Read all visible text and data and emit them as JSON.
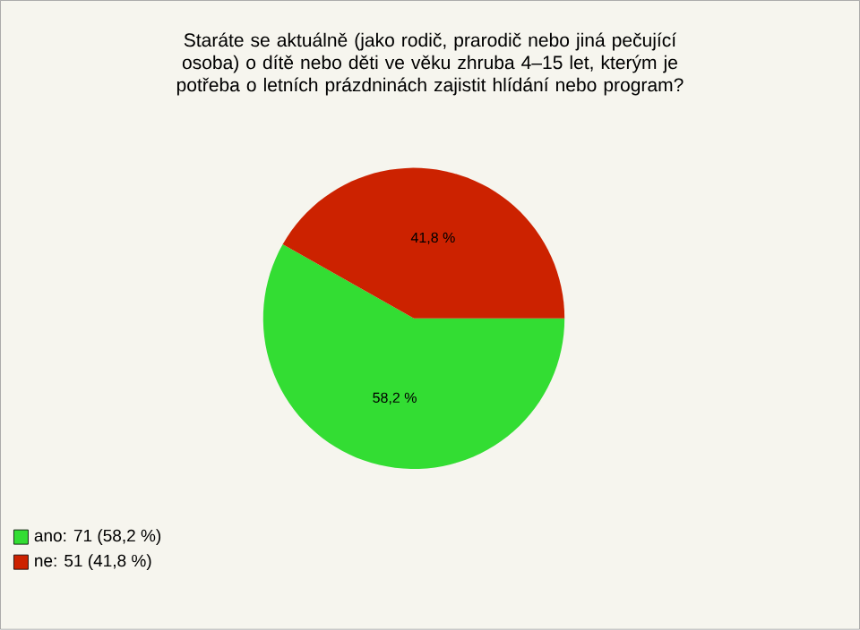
{
  "chart_data": {
    "type": "pie",
    "title": "Staráte se aktuálně (jako rodič, prarodič nebo jiná pečující osoba) o dítě nebo děti ve věku zhruba 4–15 let, kterým je potřeba o letních prázdninách zajistit hlídání nebo program?",
    "categories": [
      "ano: 71 (58,2 %)",
      "ne: 51 (41,8 %)"
    ],
    "values": [
      58.2,
      41.8
    ],
    "value_labels": [
      "58,2 %",
      "41,8 %"
    ],
    "colors": [
      "#33dd33",
      "#cc2200"
    ],
    "legend": "bottom left"
  }
}
